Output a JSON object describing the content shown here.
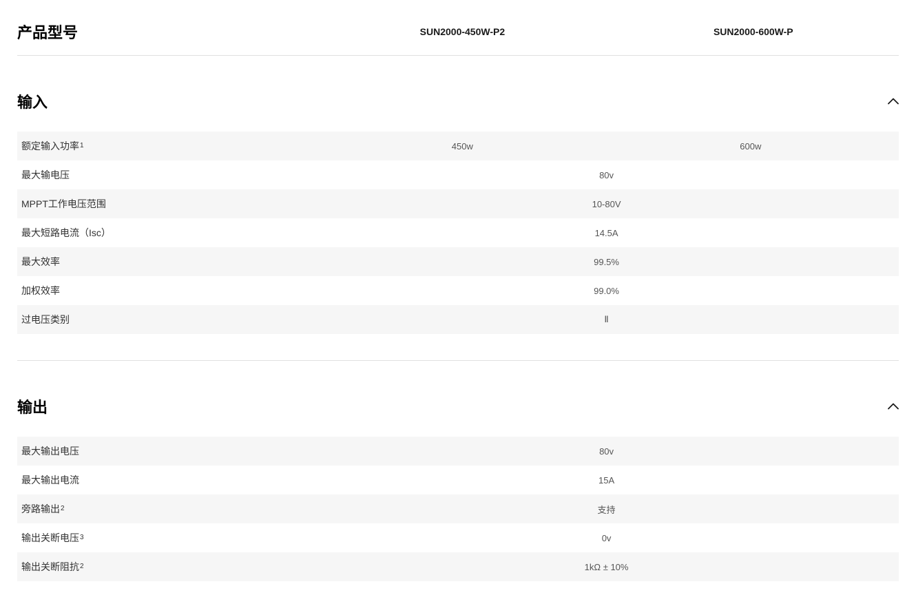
{
  "header": {
    "label": "产品型号",
    "columns": [
      "SUN2000-450W-P2",
      "SUN2000-600W-P"
    ]
  },
  "sections": [
    {
      "title": "输入",
      "rows": [
        {
          "label": "额定输入功率",
          "sup": "1",
          "values": [
            "450w",
            "600w"
          ],
          "merged": false
        },
        {
          "label": "最大输电压",
          "sup": "",
          "values": [
            "80v"
          ],
          "merged": true
        },
        {
          "label": "MPPT工作电压范围",
          "sup": "",
          "values": [
            "10-80V"
          ],
          "merged": true
        },
        {
          "label": "最大短路电流（Isc）",
          "sup": "",
          "values": [
            "14.5A"
          ],
          "merged": true
        },
        {
          "label": "最大效率",
          "sup": "",
          "values": [
            "99.5%"
          ],
          "merged": true
        },
        {
          "label": "加权效率",
          "sup": "",
          "values": [
            "99.0%"
          ],
          "merged": true
        },
        {
          "label": "过电压类别",
          "sup": "",
          "values": [
            "Ⅱ"
          ],
          "merged": true
        }
      ]
    },
    {
      "title": "输出",
      "rows": [
        {
          "label": "最大输出电压",
          "sup": "",
          "values": [
            "80v"
          ],
          "merged": true
        },
        {
          "label": "最大输出电流",
          "sup": "",
          "values": [
            "15A"
          ],
          "merged": true
        },
        {
          "label": "旁路输出",
          "sup": "2",
          "values": [
            "支持"
          ],
          "merged": true
        },
        {
          "label": "输出关断电压",
          "sup": "3",
          "values": [
            "0v"
          ],
          "merged": true
        },
        {
          "label": "输出关断阻抗",
          "sup": "2",
          "values": [
            "1kΩ ± 10%"
          ],
          "merged": true
        }
      ]
    }
  ],
  "colors": {
    "stripe": "#f6f6f6",
    "text_primary": "#1a1a1a",
    "text_secondary": "#555555",
    "divider": "#e0e0e0"
  }
}
